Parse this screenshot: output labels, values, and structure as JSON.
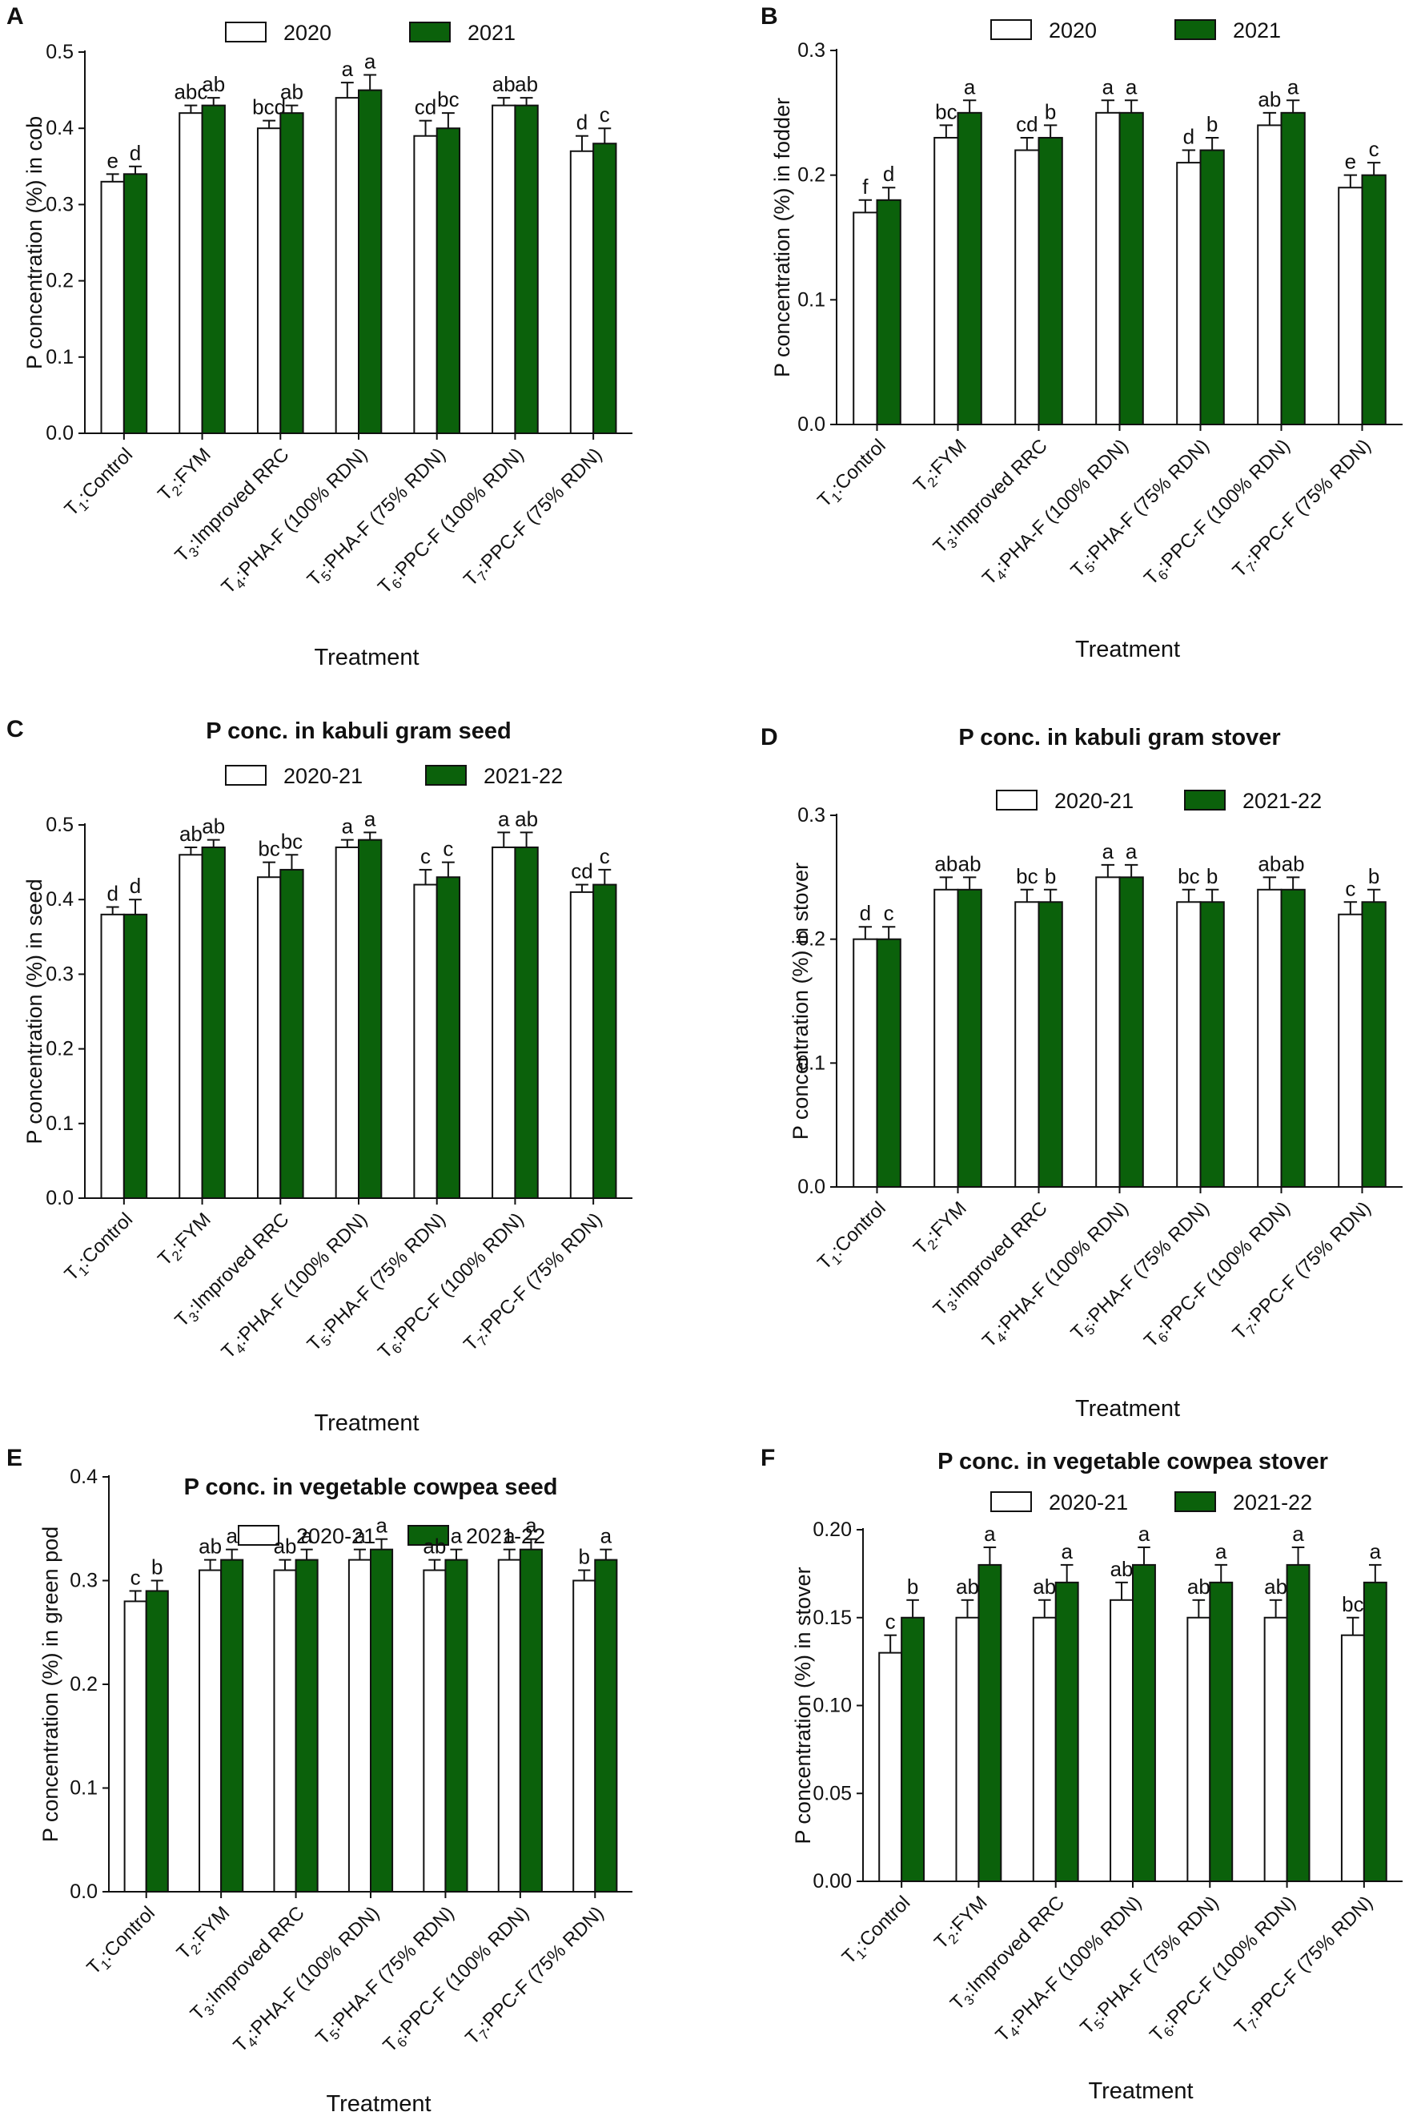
{
  "figure": {
    "categories": [
      {
        "pre": "T",
        "sub": "1",
        "post": ":Control"
      },
      {
        "pre": "T",
        "sub": "2",
        "post": ":FYM"
      },
      {
        "pre": "T",
        "sub": "3",
        "post": ":Improved RRC"
      },
      {
        "pre": "T",
        "sub": "4",
        "post": ":PHA-F (100% RDN)"
      },
      {
        "pre": "T",
        "sub": "5",
        "post": ":PHA-F (75% RDN)"
      },
      {
        "pre": "T",
        "sub": "6",
        "post": ":PPC-F (100% RDN)"
      },
      {
        "pre": "T",
        "sub": "7",
        "post": ":PPC-F (75% RDN)"
      }
    ],
    "colors": {
      "series1_fill": "#ffffff",
      "series2_fill": "#0b610b",
      "stroke": "#111111"
    }
  },
  "chart_data": [
    {
      "panel": "A",
      "type": "bar",
      "title": "",
      "xlabel": "Treatment",
      "ylabel": "P concentration (%)  in cob",
      "ylim": [
        0,
        0.5
      ],
      "yticks": [
        "0.0",
        "0.1",
        "0.2",
        "0.3",
        "0.4",
        "0.5"
      ],
      "categories": [
        "T1:Control",
        "T2:FYM",
        "T3:Improved RRC",
        "T4:PHA-F (100% RDN)",
        "T5:PHA-F (75% RDN)",
        "T6:PPC-F (100% RDN)",
        "T7:PPC-F (75% RDN)"
      ],
      "series": [
        {
          "name": "2020",
          "values": [
            0.33,
            0.42,
            0.4,
            0.44,
            0.39,
            0.43,
            0.37
          ],
          "errors": [
            0.01,
            0.01,
            0.01,
            0.02,
            0.02,
            0.01,
            0.02
          ],
          "letters": [
            "e",
            "abc",
            "bcd",
            "a",
            "cd",
            "ab",
            "d"
          ]
        },
        {
          "name": "2021",
          "values": [
            0.34,
            0.43,
            0.42,
            0.45,
            0.4,
            0.43,
            0.38
          ],
          "errors": [
            0.01,
            0.01,
            0.01,
            0.02,
            0.02,
            0.01,
            0.02
          ],
          "letters": [
            "d",
            "ab",
            "ab",
            "a",
            "bc",
            "ab",
            "c"
          ]
        }
      ]
    },
    {
      "panel": "B",
      "type": "bar",
      "title": "",
      "xlabel": "Treatment",
      "ylabel": "P concentration (%) in fodder",
      "ylim": [
        0,
        0.3
      ],
      "yticks": [
        "0.0",
        "0.1",
        "0.2",
        "0.3"
      ],
      "categories": [
        "T1:Control",
        "T2:FYM",
        "T3:Improved RRC",
        "T4:PHA-F (100% RDN)",
        "T5:PHA-F (75% RDN)",
        "T6:PPC-F (100% RDN)",
        "T7:PPC-F (75% RDN)"
      ],
      "series": [
        {
          "name": "2020",
          "values": [
            0.17,
            0.23,
            0.22,
            0.25,
            0.21,
            0.24,
            0.19
          ],
          "errors": [
            0.01,
            0.01,
            0.01,
            0.01,
            0.01,
            0.01,
            0.01
          ],
          "letters": [
            "f",
            "bc",
            "cd",
            "a",
            "d",
            "ab",
            "e"
          ]
        },
        {
          "name": "2021",
          "values": [
            0.18,
            0.25,
            0.23,
            0.25,
            0.22,
            0.25,
            0.2
          ],
          "errors": [
            0.01,
            0.01,
            0.01,
            0.01,
            0.01,
            0.01,
            0.01
          ],
          "letters": [
            "d",
            "a",
            "b",
            "a",
            "b",
            "a",
            "c"
          ]
        }
      ]
    },
    {
      "panel": "C",
      "type": "bar",
      "title": "P conc. in kabuli gram seed",
      "xlabel": "Treatment",
      "ylabel": "P concentration (%) in seed",
      "ylim": [
        0,
        0.5
      ],
      "yticks": [
        "0.0",
        "0.1",
        "0.2",
        "0.3",
        "0.4",
        "0.5"
      ],
      "categories": [
        "T1:Control",
        "T2:FYM",
        "T3:Improved RRC",
        "T4:PHA-F (100% RDN)",
        "T5:PHA-F (75% RDN)",
        "T6:PPC-F (100% RDN)",
        "T7:PPC-F (75% RDN)"
      ],
      "series": [
        {
          "name": "2020-21",
          "values": [
            0.38,
            0.46,
            0.43,
            0.47,
            0.42,
            0.47,
            0.41
          ],
          "errors": [
            0.01,
            0.01,
            0.02,
            0.01,
            0.02,
            0.02,
            0.01
          ],
          "letters": [
            "d",
            "ab",
            "bc",
            "a",
            "c",
            "a",
            "cd"
          ]
        },
        {
          "name": "2021-22",
          "values": [
            0.38,
            0.47,
            0.44,
            0.48,
            0.43,
            0.47,
            0.42
          ],
          "errors": [
            0.02,
            0.01,
            0.02,
            0.01,
            0.02,
            0.02,
            0.02
          ],
          "letters": [
            "d",
            "ab",
            "bc",
            "a",
            "c",
            "ab",
            "c"
          ]
        }
      ]
    },
    {
      "panel": "D",
      "type": "bar",
      "title": "P conc. in kabuli gram stover",
      "xlabel": "Treatment",
      "ylabel": "P concentration (%) in stover",
      "ylim": [
        0,
        0.3
      ],
      "yticks": [
        "0.0",
        "0.1",
        "0.2",
        "0.3"
      ],
      "categories": [
        "T1:Control",
        "T2:FYM",
        "T3:Improved RRC",
        "T4:PHA-F (100% RDN)",
        "T5:PHA-F (75% RDN)",
        "T6:PPC-F (100% RDN)",
        "T7:PPC-F (75% RDN)"
      ],
      "series": [
        {
          "name": "2020-21",
          "values": [
            0.2,
            0.24,
            0.23,
            0.25,
            0.23,
            0.24,
            0.22
          ],
          "errors": [
            0.01,
            0.01,
            0.01,
            0.01,
            0.01,
            0.01,
            0.01
          ],
          "letters": [
            "d",
            "ab",
            "bc",
            "a",
            "bc",
            "ab",
            "c"
          ]
        },
        {
          "name": "2021-22",
          "values": [
            0.2,
            0.24,
            0.23,
            0.25,
            0.23,
            0.24,
            0.23
          ],
          "errors": [
            0.01,
            0.01,
            0.01,
            0.01,
            0.01,
            0.01,
            0.01
          ],
          "letters": [
            "c",
            "ab",
            "b",
            "a",
            "b",
            "ab",
            "b"
          ]
        }
      ]
    },
    {
      "panel": "E",
      "type": "bar",
      "title": "P conc. in vegetable cowpea seed",
      "xlabel": "Treatment",
      "ylabel": "P concentration (%) in green pod",
      "ylim": [
        0,
        0.4
      ],
      "yticks": [
        "0.0",
        "0.1",
        "0.2",
        "0.3",
        "0.4"
      ],
      "categories": [
        "T1:Control",
        "T2:FYM",
        "T3:Improved RRC",
        "T4:PHA-F (100% RDN)",
        "T5:PHA-F (75% RDN)",
        "T6:PPC-F (100% RDN)",
        "T7:PPC-F (75% RDN)"
      ],
      "series": [
        {
          "name": "2020-21",
          "values": [
            0.28,
            0.31,
            0.31,
            0.32,
            0.31,
            0.32,
            0.3
          ],
          "errors": [
            0.01,
            0.01,
            0.01,
            0.01,
            0.01,
            0.01,
            0.01
          ],
          "letters": [
            "c",
            "ab",
            "ab",
            "a",
            "ab",
            "a",
            "b"
          ]
        },
        {
          "name": "2021-22",
          "values": [
            0.29,
            0.32,
            0.32,
            0.33,
            0.32,
            0.33,
            0.32
          ],
          "errors": [
            0.01,
            0.01,
            0.01,
            0.01,
            0.01,
            0.01,
            0.01
          ],
          "letters": [
            "b",
            "a",
            "a",
            "a",
            "a",
            "a",
            "a"
          ]
        }
      ]
    },
    {
      "panel": "F",
      "type": "bar",
      "title": "P conc. in vegetable cowpea stover",
      "xlabel": "Treatment",
      "ylabel": "P concentration (%) in stover",
      "ylim": [
        0,
        0.2
      ],
      "yticks": [
        "0.00",
        "0.05",
        "0.10",
        "0.15",
        "0.20"
      ],
      "categories": [
        "T1:Control",
        "T2:FYM",
        "T3:Improved RRC",
        "T4:PHA-F (100% RDN)",
        "T5:PHA-F (75% RDN)",
        "T6:PPC-F (100% RDN)",
        "T7:PPC-F (75% RDN)"
      ],
      "series": [
        {
          "name": "2020-21",
          "values": [
            0.13,
            0.15,
            0.15,
            0.16,
            0.15,
            0.15,
            0.14
          ],
          "errors": [
            0.01,
            0.01,
            0.01,
            0.01,
            0.01,
            0.01,
            0.01
          ],
          "letters": [
            "c",
            "ab",
            "ab",
            "ab",
            "ab",
            "ab",
            "bc"
          ]
        },
        {
          "name": "2021-22",
          "values": [
            0.15,
            0.18,
            0.17,
            0.18,
            0.17,
            0.18,
            0.17
          ],
          "errors": [
            0.01,
            0.01,
            0.01,
            0.01,
            0.01,
            0.01,
            0.01
          ],
          "letters": [
            "b",
            "a",
            "a",
            "a",
            "a",
            "a",
            "a"
          ]
        }
      ]
    }
  ]
}
